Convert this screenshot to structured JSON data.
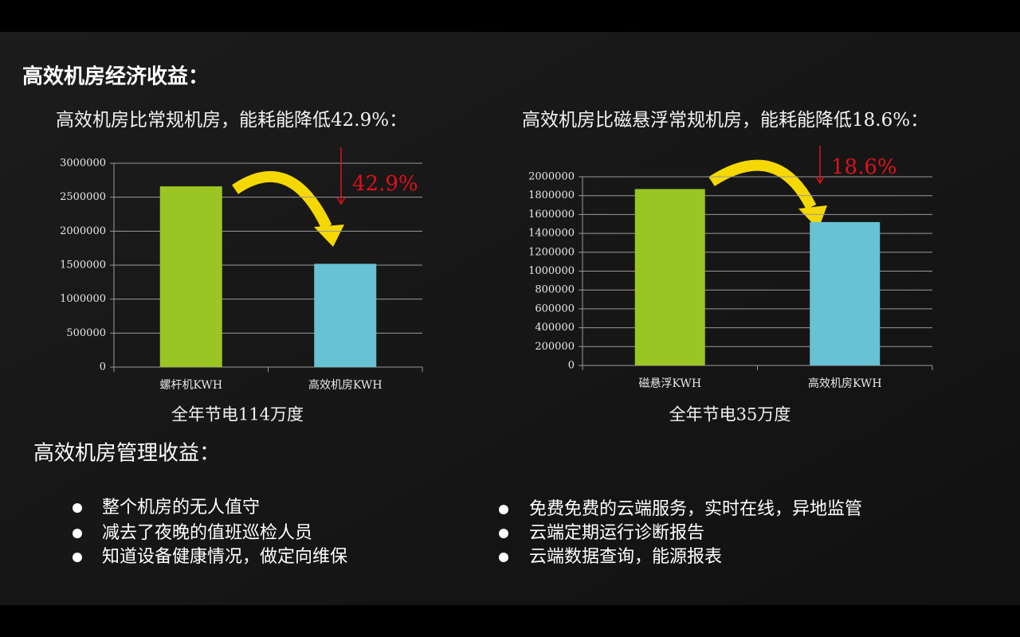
{
  "heading": "高效机房经济收益：",
  "chart_data": [
    {
      "type": "bar",
      "title": "高效机房比常规机房，能耗能降低42.9%：",
      "subtitle": "全年节电114万度",
      "annotation": "42.9%",
      "categories": [
        "螺杆机KWH",
        "高效机房KWH"
      ],
      "values": [
        2660000,
        1520000
      ],
      "colors": [
        "#9ac522",
        "#67c2d4"
      ],
      "ylim": [
        0,
        3000000
      ],
      "yticks": [
        0,
        500000,
        1000000,
        1500000,
        2000000,
        2500000,
        3000000
      ],
      "grid": true
    },
    {
      "type": "bar",
      "title": "高效机房比磁悬浮常规机房，能耗能降低18.6%：",
      "subtitle": "全年节电35万度",
      "annotation": "18.6%",
      "categories": [
        "磁悬浮KWH",
        "高效机房KWH"
      ],
      "values": [
        1870000,
        1520000
      ],
      "colors": [
        "#9ac522",
        "#67c2d4"
      ],
      "ylim": [
        0,
        2000000
      ],
      "yticks": [
        0,
        200000,
        400000,
        600000,
        800000,
        1000000,
        1200000,
        1400000,
        1600000,
        1800000,
        2000000
      ],
      "grid": true
    }
  ],
  "management": {
    "heading": "高效机房管理收益：",
    "left_items": [
      "整个机房的无人值守",
      "减去了夜晚的值班巡检人员",
      "知道设备健康情况，做定向维保"
    ],
    "right_items": [
      "免费免费的云端服务，实时在线，异地监管",
      "云端定期运行诊断报告",
      "云端数据查询，能源报表"
    ]
  }
}
